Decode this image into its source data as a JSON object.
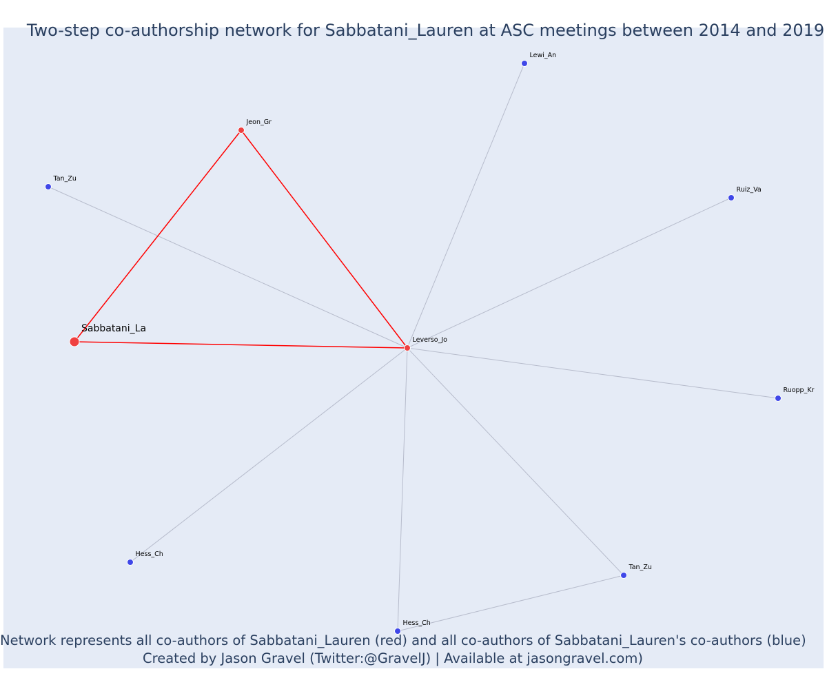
{
  "title": "Two-step co-authorship network for Sabbatani_Lauren at ASC meetings between 2014 and 2019",
  "caption_line1": "Network represents all co-authors of Sabbatani_Lauren (red) and all co-authors of Sabbatani_Lauren's co-authors (blue)",
  "caption_line2": "Created by Jason Gravel (Twitter:@GravelJ) | Available at jasongravel.com)",
  "colors": {
    "background": "#e5ebf6",
    "coauthor_node": "#ef4040",
    "second_step_node": "#3f47e8",
    "coauthor_edge": "#ff0000",
    "second_step_edge": "#b7bccc",
    "text": "#2a3f5f"
  },
  "nodes": [
    {
      "id": "sabbatani",
      "label": "Sabbatani_La",
      "group": "focal"
    },
    {
      "id": "jeon",
      "label": "Jeon_Gr",
      "group": "coauthor"
    },
    {
      "id": "leverso",
      "label": "Leverso_Jo",
      "group": "coauthor"
    },
    {
      "id": "lewi",
      "label": "Lewi_An",
      "group": "second"
    },
    {
      "id": "tanzu1",
      "label": "Tan_Zu",
      "group": "second"
    },
    {
      "id": "ruiz",
      "label": "Ruiz_Va",
      "group": "second"
    },
    {
      "id": "ruopp",
      "label": "Ruopp_Kr",
      "group": "second"
    },
    {
      "id": "hess1",
      "label": "Hess_Ch",
      "group": "second"
    },
    {
      "id": "tanzu2",
      "label": "Tan_Zu",
      "group": "second"
    },
    {
      "id": "hess2",
      "label": "Hess_Ch",
      "group": "second"
    }
  ],
  "edges": [
    {
      "source": "leverso",
      "target": "lewi",
      "type": "second"
    },
    {
      "source": "leverso",
      "target": "tanzu1",
      "type": "second"
    },
    {
      "source": "leverso",
      "target": "ruiz",
      "type": "second"
    },
    {
      "source": "leverso",
      "target": "ruopp",
      "type": "second"
    },
    {
      "source": "leverso",
      "target": "hess1",
      "type": "second"
    },
    {
      "source": "leverso",
      "target": "hess2",
      "type": "second"
    },
    {
      "source": "leverso",
      "target": "tanzu2",
      "type": "second"
    },
    {
      "source": "tanzu2",
      "target": "hess2",
      "type": "second"
    },
    {
      "source": "sabbatani",
      "target": "jeon",
      "type": "coauthor"
    },
    {
      "source": "jeon",
      "target": "leverso",
      "type": "coauthor"
    },
    {
      "source": "sabbatani",
      "target": "leverso",
      "type": "coauthor"
    }
  ]
}
